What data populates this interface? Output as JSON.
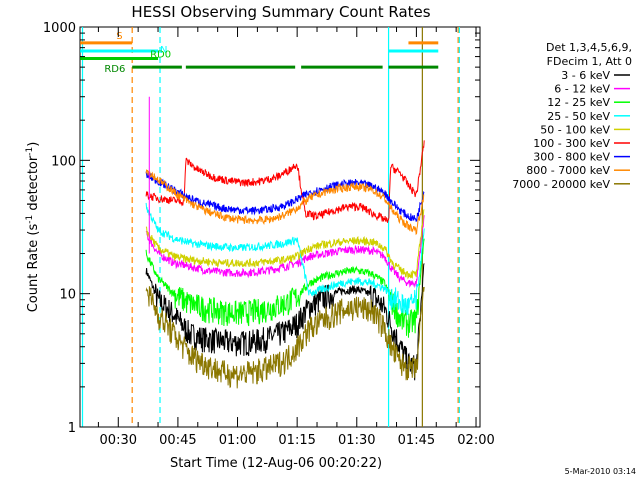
{
  "chart_data": {
    "type": "line",
    "title": "HESSI Observing Summary Count Rates",
    "xlabel": "Start Time (12-Aug-06 00:20:22)",
    "ylabel_main": "Count Rate (s",
    "ylabel_sup1": "-1",
    "ylabel_mid": " detector",
    "ylabel_sup2": "-1",
    "ylabel_end": ")",
    "y_scale": "log",
    "ylim": [
      1,
      1000
    ],
    "xlim_minutes": [
      20.37,
      121.0
    ],
    "x_ticks": [
      {
        "m": 30,
        "label": "00:30"
      },
      {
        "m": 45,
        "label": "00:45"
      },
      {
        "m": 60,
        "label": "01:00"
      },
      {
        "m": 75,
        "label": "01:15"
      },
      {
        "m": 90,
        "label": "01:30"
      },
      {
        "m": 105,
        "label": "01:45"
      },
      {
        "m": 120,
        "label": "02:00"
      }
    ],
    "y_ticks": [
      {
        "v": 1,
        "label": "1"
      },
      {
        "v": 10,
        "label": "10"
      },
      {
        "v": 100,
        "label": "100"
      },
      {
        "v": 1000,
        "label": "1000"
      }
    ],
    "legend": {
      "header": [
        "Det 1,3,4,5,6,9,",
        "FDecim 1, Att 0"
      ],
      "placement": "right"
    },
    "series": [
      {
        "name": "3 - 6 keV",
        "color": "#000000",
        "x": [
          37,
          40,
          44,
          48,
          52,
          56,
          60,
          64,
          68,
          72,
          75,
          78,
          82,
          86,
          90,
          94,
          97,
          99,
          101,
          103,
          105,
          107
        ],
        "y": [
          15,
          9,
          7,
          5,
          4.6,
          4.4,
          4.3,
          4.4,
          4.7,
          5.2,
          6,
          8,
          9.5,
          10.5,
          10.8,
          9.8,
          7.8,
          5.5,
          4,
          3,
          2.8,
          18
        ]
      },
      {
        "name": "6 - 12 keV",
        "color": "#ff00ff",
        "x": [
          37,
          40,
          44,
          48,
          52,
          56,
          60,
          64,
          68,
          72,
          75,
          78,
          82,
          86,
          90,
          94,
          97,
          99,
          101,
          103,
          105,
          107
        ],
        "y": [
          28,
          20,
          17,
          16,
          15,
          14.5,
          14.3,
          14.5,
          15,
          16,
          17,
          19,
          20,
          21,
          21.5,
          21,
          19,
          15,
          13,
          12,
          12,
          40
        ]
      },
      {
        "name": "12 - 25 keV",
        "color": "#00ff00",
        "x": [
          37,
          40,
          44,
          48,
          52,
          56,
          60,
          64,
          68,
          72,
          75,
          78,
          82,
          86,
          90,
          94,
          97,
          99,
          101,
          103,
          105,
          107
        ],
        "y": [
          20,
          13,
          10,
          8.5,
          7.8,
          7.4,
          7.2,
          7.4,
          7.8,
          8.5,
          9.5,
          12,
          13.5,
          14.5,
          15,
          14,
          12,
          8.5,
          6.5,
          6,
          6.5,
          28
        ]
      },
      {
        "name": "25 - 50 keV",
        "color": "#00ffff",
        "x": [
          37,
          40,
          44,
          48,
          52,
          56,
          60,
          64,
          68,
          72,
          75,
          78,
          82,
          86,
          90,
          94,
          97,
          99,
          101,
          103,
          105,
          107
        ],
        "y": [
          45,
          30,
          26,
          24,
          23,
          22.5,
          22,
          22.5,
          23,
          24,
          25.5,
          10,
          11,
          12,
          12.5,
          12,
          11,
          9.5,
          8.5,
          8,
          9,
          30
        ]
      },
      {
        "name": "50 - 100 keV",
        "color": "#d0d000",
        "x": [
          37,
          40,
          44,
          48,
          52,
          56,
          60,
          64,
          68,
          72,
          75,
          78,
          82,
          86,
          90,
          94,
          97,
          99,
          101,
          103,
          105,
          107
        ],
        "y": [
          30,
          22,
          19,
          18,
          17.5,
          17,
          17,
          17,
          17.5,
          18,
          19,
          22,
          23.5,
          24.5,
          25,
          24.5,
          22,
          17,
          15,
          14,
          14,
          45
        ]
      },
      {
        "name": "100 - 300 keV",
        "color": "#ff0000",
        "x": [
          37,
          40,
          44,
          46.5,
          47,
          50,
          54,
          58,
          62,
          66,
          70,
          73,
          75,
          77,
          80,
          84,
          88,
          91,
          94,
          97,
          98,
          98.5,
          101,
          103,
          105,
          107
        ],
        "y": [
          55,
          52,
          50,
          49,
          100,
          85,
          75,
          70,
          68,
          70,
          75,
          85,
          95,
          40,
          38,
          42,
          45,
          45,
          40,
          36,
          34,
          90,
          80,
          65,
          55,
          140
        ]
      },
      {
        "name": "300 - 800 keV",
        "color": "#0000ff",
        "x": [
          37,
          40,
          44,
          48,
          52,
          56,
          60,
          64,
          68,
          72,
          75,
          78,
          82,
          86,
          90,
          94,
          97,
          99,
          101,
          103,
          105,
          107
        ],
        "y": [
          78,
          70,
          60,
          52,
          47,
          44,
          42.5,
          42,
          43,
          46,
          51,
          57,
          62,
          66,
          68,
          64,
          57,
          48,
          42,
          38,
          36,
          60
        ]
      },
      {
        "name": "800 - 7000 keV",
        "color": "#ff8800",
        "x": [
          37,
          40,
          44,
          48,
          52,
          56,
          60,
          64,
          68,
          72,
          75,
          78,
          82,
          86,
          90,
          94,
          97,
          99,
          101,
          103,
          105,
          107
        ],
        "y": [
          85,
          72,
          58,
          48,
          42,
          38,
          36,
          35.5,
          36,
          39,
          44,
          52,
          58,
          62,
          64,
          60,
          52,
          42,
          36,
          32,
          30,
          55
        ]
      },
      {
        "name": "7000 - 20000 keV",
        "color": "#8b7700",
        "x": [
          37,
          40,
          44,
          48,
          52,
          56,
          60,
          64,
          68,
          72,
          75,
          78,
          82,
          86,
          90,
          94,
          97,
          99,
          101,
          103,
          105,
          107
        ],
        "y": [
          11,
          7,
          5,
          3.5,
          3,
          2.6,
          2.5,
          2.6,
          2.8,
          3.2,
          4,
          5.5,
          6.5,
          7.5,
          8,
          7.5,
          5.5,
          3.8,
          3,
          2.8,
          2.7,
          12
        ]
      }
    ],
    "flags": [
      {
        "label": "S",
        "color": "#ff8800",
        "y": 760,
        "segments": [
          [
            20.4,
            33.5
          ],
          [
            103,
            110.5
          ]
        ]
      },
      {
        "label": "N",
        "color": "#00ffff",
        "y": 660,
        "segments": [
          [
            20.4,
            40
          ],
          [
            98,
            110.5
          ]
        ]
      },
      {
        "label": "RD0",
        "color": "#00cc00",
        "y": 580,
        "segments": [
          [
            20.4,
            40
          ]
        ]
      },
      {
        "label": "RD6",
        "color": "#008800",
        "y": 500,
        "segments": [
          [
            33.5,
            46
          ],
          [
            47,
            74.5
          ],
          [
            76,
            96.5
          ],
          [
            98,
            110.5
          ]
        ]
      }
    ],
    "vlines": [
      {
        "x": 33.5,
        "color": "#ff8800",
        "dash": true
      },
      {
        "x": 40.5,
        "color": "#00ffff",
        "dash": true
      },
      {
        "x": 21,
        "color": "#00ffff",
        "dash": false
      },
      {
        "x": 98,
        "color": "#00ffff",
        "dash": false
      },
      {
        "x": 106.5,
        "color": "#8b7700",
        "dash": false
      },
      {
        "x": 115.5,
        "color": "#ff8800",
        "dash": true
      },
      {
        "x": 115.8,
        "color": "#00ffff",
        "dash": true
      }
    ],
    "timestamp": "5-Mar-2010 03:14"
  }
}
